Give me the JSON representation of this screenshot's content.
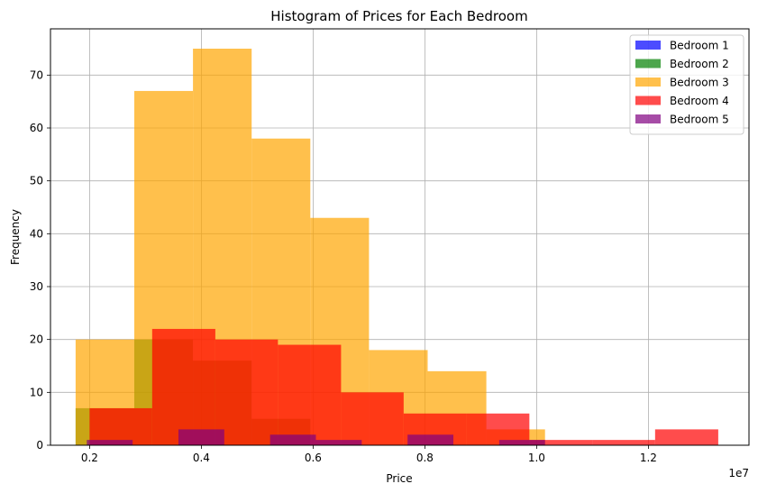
{
  "chart_data": {
    "type": "histogram",
    "title": "Histogram of Prices for Each Bedroom",
    "xlabel": "Price",
    "ylabel": "Frequency",
    "x_offset_label": "1e7",
    "xlim": [
      0.13,
      1.38
    ],
    "ylim": [
      0,
      78.75
    ],
    "x_ticks": [
      0.2,
      0.4,
      0.6,
      0.8,
      1.0,
      1.2
    ],
    "x_tick_labels": [
      "0.2",
      "0.4",
      "0.6",
      "0.8",
      "1.0",
      "1.2"
    ],
    "y_ticks": [
      0,
      10,
      20,
      30,
      40,
      50,
      60,
      70
    ],
    "y_tick_labels": [
      "0",
      "10",
      "20",
      "30",
      "40",
      "50",
      "60",
      "70"
    ],
    "grid": true,
    "legend_position": "top-right",
    "series": [
      {
        "name": "Bedroom 1",
        "color": "#0000ff",
        "alpha": 0.7,
        "bins": []
      },
      {
        "name": "Bedroom 2",
        "color": "#008000",
        "alpha": 0.7,
        "bins": [
          {
            "x0": 0.175,
            "x1": 0.28,
            "count": 7
          },
          {
            "x0": 0.28,
            "x1": 0.385,
            "count": 20
          },
          {
            "x0": 0.385,
            "x1": 0.49,
            "count": 16
          },
          {
            "x0": 0.49,
            "x1": 0.595,
            "count": 5
          }
        ]
      },
      {
        "name": "Bedroom 3",
        "color": "#ffa500",
        "alpha": 0.7,
        "bins": [
          {
            "x0": 0.175,
            "x1": 0.28,
            "count": 20
          },
          {
            "x0": 0.28,
            "x1": 0.385,
            "count": 67
          },
          {
            "x0": 0.385,
            "x1": 0.49,
            "count": 75
          },
          {
            "x0": 0.49,
            "x1": 0.595,
            "count": 58
          },
          {
            "x0": 0.595,
            "x1": 0.7,
            "count": 43
          },
          {
            "x0": 0.7,
            "x1": 0.805,
            "count": 18
          },
          {
            "x0": 0.805,
            "x1": 0.91,
            "count": 14
          },
          {
            "x0": 0.91,
            "x1": 1.015,
            "count": 3
          }
        ]
      },
      {
        "name": "Bedroom 4",
        "color": "#ff0000",
        "alpha": 0.7,
        "bins": [
          {
            "x0": 0.2,
            "x1": 0.312,
            "count": 7
          },
          {
            "x0": 0.312,
            "x1": 0.425,
            "count": 22
          },
          {
            "x0": 0.425,
            "x1": 0.537,
            "count": 20
          },
          {
            "x0": 0.537,
            "x1": 0.65,
            "count": 19
          },
          {
            "x0": 0.65,
            "x1": 0.762,
            "count": 10
          },
          {
            "x0": 0.762,
            "x1": 0.875,
            "count": 6
          },
          {
            "x0": 0.875,
            "x1": 0.987,
            "count": 6
          },
          {
            "x0": 0.987,
            "x1": 1.1,
            "count": 1
          },
          {
            "x0": 1.1,
            "x1": 1.212,
            "count": 1
          },
          {
            "x0": 1.212,
            "x1": 1.325,
            "count": 3
          }
        ]
      },
      {
        "name": "Bedroom 5",
        "color": "#800080",
        "alpha": 0.7,
        "bins": [
          {
            "x0": 0.195,
            "x1": 0.277,
            "count": 1
          },
          {
            "x0": 0.277,
            "x1": 0.359,
            "count": 0
          },
          {
            "x0": 0.359,
            "x1": 0.441,
            "count": 3
          },
          {
            "x0": 0.441,
            "x1": 0.523,
            "count": 0
          },
          {
            "x0": 0.523,
            "x1": 0.605,
            "count": 2
          },
          {
            "x0": 0.605,
            "x1": 0.687,
            "count": 1
          },
          {
            "x0": 0.687,
            "x1": 0.769,
            "count": 0
          },
          {
            "x0": 0.769,
            "x1": 0.851,
            "count": 2
          },
          {
            "x0": 0.851,
            "x1": 0.933,
            "count": 0
          },
          {
            "x0": 0.933,
            "x1": 1.015,
            "count": 1
          }
        ]
      }
    ]
  }
}
